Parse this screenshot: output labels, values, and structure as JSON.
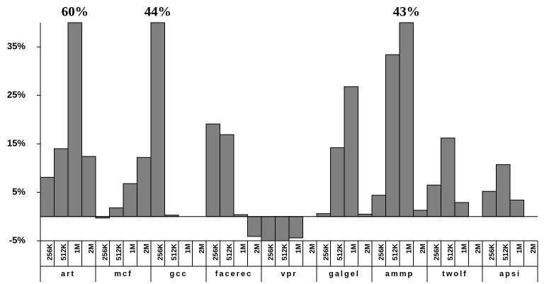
{
  "chart_data": {
    "type": "bar",
    "categories": [
      "256K",
      "512K",
      "1M",
      "2M"
    ],
    "groups": [
      {
        "name": "art",
        "values": [
          8.1,
          14,
          60,
          12.4
        ],
        "value_labels": [
          null,
          null,
          "60%",
          null
        ]
      },
      {
        "name": "mcf",
        "values": [
          -0.3,
          1.8,
          6.8,
          12.2
        ]
      },
      {
        "name": "gcc",
        "values": [
          44,
          0.3,
          0,
          0
        ],
        "value_labels": [
          "44%",
          null,
          null,
          null
        ]
      },
      {
        "name": "facerec",
        "values": [
          19.1,
          16.9,
          0.4,
          -4.1
        ]
      },
      {
        "name": "vpr",
        "values": [
          -5.1,
          -5.1,
          -4.4,
          0
        ]
      },
      {
        "name": "galgel",
        "values": [
          0.6,
          14.2,
          26.8,
          0.5
        ]
      },
      {
        "name": "ammp",
        "values": [
          4.4,
          33.4,
          43,
          1.3
        ],
        "value_labels": [
          null,
          null,
          "43%",
          null
        ]
      },
      {
        "name": "twolf",
        "values": [
          6.5,
          16.2,
          2.9,
          0
        ]
      },
      {
        "name": "apsi",
        "values": [
          5.2,
          10.7,
          3.4,
          0
        ]
      }
    ],
    "color": "#808080",
    "ylim": [
      -5,
      40
    ],
    "yticks": [
      {
        "value": -5,
        "label": "-5%"
      },
      {
        "value": 5,
        "label": "5%"
      },
      {
        "value": 15,
        "label": "15%"
      },
      {
        "value": 25,
        "label": "25%"
      },
      {
        "value": 35,
        "label": "35%"
      }
    ]
  }
}
